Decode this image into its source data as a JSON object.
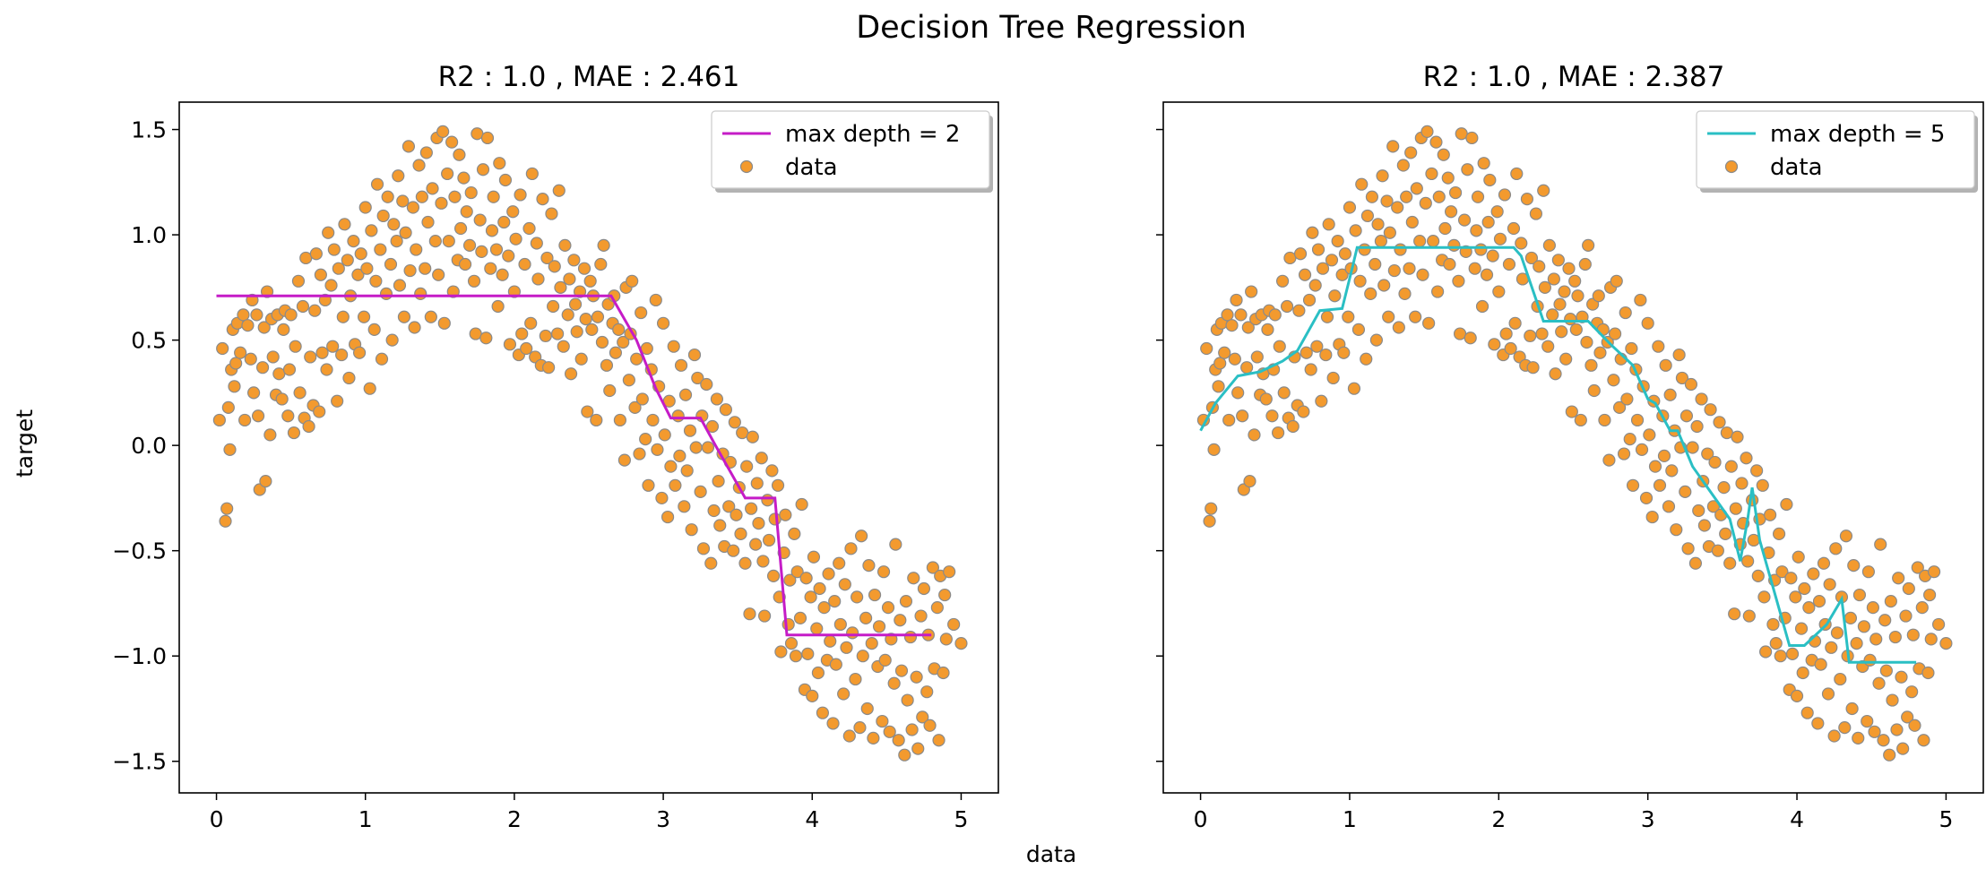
{
  "figure": {
    "suptitle": "Decision Tree Regression",
    "xlabel": "data",
    "ylabel": "target"
  },
  "chart_data": [
    {
      "type": "scatter",
      "title": "R2 : 1.0 , MAE : 2.461",
      "xlim": [
        -0.25,
        5.25
      ],
      "ylim": [
        -1.65,
        1.63
      ],
      "xticks": [
        "0",
        "1",
        "2",
        "3",
        "4",
        "5"
      ],
      "yticks": [
        "1.5",
        "1.0",
        "0.5",
        "0.0",
        "−0.5",
        "−1.0",
        "−1.5"
      ],
      "grid": false,
      "legend_position": "top-right",
      "series": [
        {
          "name": "max depth = 2",
          "kind": "line",
          "color": "#c51cc7",
          "x": [
            0.0,
            2.65,
            2.82,
            2.95,
            3.05,
            3.25,
            3.35,
            3.55,
            3.65,
            3.75,
            3.83,
            4.8
          ],
          "y": [
            0.71,
            0.71,
            0.5,
            0.27,
            0.13,
            0.13,
            0.0,
            -0.25,
            -0.25,
            -0.25,
            -0.9,
            -0.9
          ]
        },
        {
          "name": "data",
          "kind": "scatter",
          "color": "#f39a2e",
          "edge_color": "#8a8a8a"
        }
      ]
    },
    {
      "type": "scatter",
      "title": "R2 : 1.0 , MAE : 2.387",
      "xlim": [
        -0.25,
        5.25
      ],
      "ylim": [
        -1.65,
        1.63
      ],
      "xticks": [
        "0",
        "1",
        "2",
        "3",
        "4",
        "5"
      ],
      "yticks": [
        "1.5",
        "1.0",
        "0.5",
        "0.0",
        "−0.5",
        "−1.0",
        "−1.5"
      ],
      "grid": false,
      "legend_position": "top-right",
      "series": [
        {
          "name": "max depth = 5",
          "kind": "line",
          "color": "#2abfc4",
          "x": [
            0.0,
            0.1,
            0.25,
            0.4,
            0.55,
            0.65,
            0.8,
            0.95,
            1.02,
            1.05,
            2.1,
            2.15,
            2.3,
            2.6,
            2.75,
            2.9,
            3.0,
            3.05,
            3.15,
            3.2,
            3.3,
            3.45,
            3.55,
            3.62,
            3.67,
            3.7,
            3.75,
            3.85,
            3.95,
            4.05,
            4.2,
            4.3,
            4.35,
            4.5,
            4.8
          ],
          "y": [
            0.07,
            0.2,
            0.33,
            0.35,
            0.4,
            0.45,
            0.64,
            0.65,
            0.85,
            0.94,
            0.94,
            0.9,
            0.59,
            0.59,
            0.48,
            0.38,
            0.22,
            0.2,
            0.07,
            0.07,
            -0.1,
            -0.25,
            -0.35,
            -0.55,
            -0.35,
            -0.2,
            -0.45,
            -0.7,
            -0.95,
            -0.95,
            -0.85,
            -0.73,
            -1.03,
            -1.03,
            -1.03
          ]
        },
        {
          "name": "data",
          "kind": "scatter",
          "color": "#f39a2e",
          "edge_color": "#8a8a8a"
        }
      ]
    }
  ],
  "scatter_points": [
    [
      0.02,
      0.12
    ],
    [
      0.04,
      0.46
    ],
    [
      0.06,
      -0.36
    ],
    [
      0.07,
      -0.3
    ],
    [
      0.08,
      0.18
    ],
    [
      0.09,
      -0.02
    ],
    [
      0.1,
      0.36
    ],
    [
      0.11,
      0.55
    ],
    [
      0.12,
      0.28
    ],
    [
      0.13,
      0.39
    ],
    [
      0.14,
      0.58
    ],
    [
      0.16,
      0.44
    ],
    [
      0.18,
      0.62
    ],
    [
      0.19,
      0.12
    ],
    [
      0.21,
      0.57
    ],
    [
      0.23,
      0.41
    ],
    [
      0.24,
      0.69
    ],
    [
      0.25,
      0.25
    ],
    [
      0.27,
      0.62
    ],
    [
      0.28,
      0.14
    ],
    [
      0.29,
      -0.21
    ],
    [
      0.31,
      0.37
    ],
    [
      0.32,
      0.56
    ],
    [
      0.33,
      -0.17
    ],
    [
      0.34,
      0.73
    ],
    [
      0.36,
      0.05
    ],
    [
      0.37,
      0.6
    ],
    [
      0.38,
      0.42
    ],
    [
      0.4,
      0.24
    ],
    [
      0.41,
      0.62
    ],
    [
      0.42,
      0.34
    ],
    [
      0.44,
      0.22
    ],
    [
      0.45,
      0.55
    ],
    [
      0.46,
      0.64
    ],
    [
      0.48,
      0.14
    ],
    [
      0.49,
      0.36
    ],
    [
      0.5,
      0.62
    ],
    [
      0.52,
      0.06
    ],
    [
      0.53,
      0.47
    ],
    [
      0.55,
      0.78
    ],
    [
      0.56,
      0.25
    ],
    [
      0.58,
      0.66
    ],
    [
      0.59,
      0.13
    ],
    [
      0.6,
      0.89
    ],
    [
      0.62,
      0.09
    ],
    [
      0.63,
      0.42
    ],
    [
      0.65,
      0.19
    ],
    [
      0.66,
      0.64
    ],
    [
      0.67,
      0.91
    ],
    [
      0.69,
      0.16
    ],
    [
      0.7,
      0.81
    ],
    [
      0.71,
      0.44
    ],
    [
      0.73,
      0.69
    ],
    [
      0.74,
      0.36
    ],
    [
      0.75,
      1.01
    ],
    [
      0.77,
      0.76
    ],
    [
      0.78,
      0.47
    ],
    [
      0.79,
      0.93
    ],
    [
      0.81,
      0.21
    ],
    [
      0.82,
      0.84
    ],
    [
      0.84,
      0.43
    ],
    [
      0.85,
      0.61
    ],
    [
      0.86,
      1.05
    ],
    [
      0.88,
      0.88
    ],
    [
      0.89,
      0.32
    ],
    [
      0.9,
      0.71
    ],
    [
      0.92,
      0.97
    ],
    [
      0.93,
      0.48
    ],
    [
      0.95,
      0.81
    ],
    [
      0.96,
      0.44
    ],
    [
      0.97,
      0.91
    ],
    [
      0.99,
      0.61
    ],
    [
      1.0,
      1.13
    ],
    [
      1.01,
      0.84
    ],
    [
      1.03,
      0.27
    ],
    [
      1.04,
      1.02
    ],
    [
      1.06,
      0.55
    ],
    [
      1.07,
      0.78
    ],
    [
      1.08,
      1.24
    ],
    [
      1.1,
      0.93
    ],
    [
      1.11,
      0.41
    ],
    [
      1.12,
      1.09
    ],
    [
      1.14,
      0.72
    ],
    [
      1.15,
      1.18
    ],
    [
      1.17,
      0.86
    ],
    [
      1.18,
      0.5
    ],
    [
      1.19,
      1.05
    ],
    [
      1.21,
      0.97
    ],
    [
      1.22,
      1.28
    ],
    [
      1.23,
      0.76
    ],
    [
      1.25,
      1.16
    ],
    [
      1.26,
      0.61
    ],
    [
      1.27,
      1.01
    ],
    [
      1.29,
      1.42
    ],
    [
      1.3,
      0.83
    ],
    [
      1.32,
      1.13
    ],
    [
      1.33,
      0.56
    ],
    [
      1.34,
      0.93
    ],
    [
      1.36,
      1.33
    ],
    [
      1.37,
      0.72
    ],
    [
      1.38,
      1.18
    ],
    [
      1.4,
      0.84
    ],
    [
      1.41,
      1.39
    ],
    [
      1.42,
      1.06
    ],
    [
      1.44,
      0.61
    ],
    [
      1.45,
      1.22
    ],
    [
      1.47,
      0.97
    ],
    [
      1.48,
      1.46
    ],
    [
      1.49,
      0.81
    ],
    [
      1.51,
      1.15
    ],
    [
      1.52,
      1.49
    ],
    [
      1.53,
      0.58
    ],
    [
      1.55,
      1.29
    ],
    [
      1.56,
      0.97
    ],
    [
      1.58,
      1.44
    ],
    [
      1.59,
      0.73
    ],
    [
      1.6,
      1.18
    ],
    [
      1.62,
      0.88
    ],
    [
      1.63,
      1.38
    ],
    [
      1.64,
      1.03
    ],
    [
      1.66,
      1.27
    ],
    [
      1.67,
      0.86
    ],
    [
      1.68,
      1.11
    ],
    [
      1.7,
      0.95
    ],
    [
      1.71,
      1.2
    ],
    [
      1.73,
      0.78
    ],
    [
      1.74,
      0.53
    ],
    [
      1.75,
      1.48
    ],
    [
      1.77,
      1.07
    ],
    [
      1.78,
      0.92
    ],
    [
      1.79,
      1.31
    ],
    [
      1.81,
      0.51
    ],
    [
      1.82,
      1.46
    ],
    [
      1.84,
      0.84
    ],
    [
      1.85,
      1.02
    ],
    [
      1.86,
      1.18
    ],
    [
      1.88,
      0.93
    ],
    [
      1.89,
      0.66
    ],
    [
      1.9,
      1.34
    ],
    [
      1.92,
      0.81
    ],
    [
      1.93,
      1.06
    ],
    [
      1.94,
      1.26
    ],
    [
      1.96,
      0.9
    ],
    [
      1.97,
      0.48
    ],
    [
      1.99,
      1.11
    ],
    [
      2.0,
      0.73
    ],
    [
      2.01,
      0.98
    ],
    [
      2.03,
      0.43
    ],
    [
      2.04,
      1.19
    ],
    [
      2.05,
      0.53
    ],
    [
      2.07,
      0.86
    ],
    [
      2.08,
      0.46
    ],
    [
      2.1,
      1.03
    ],
    [
      2.11,
      0.58
    ],
    [
      2.12,
      1.29
    ],
    [
      2.14,
      0.42
    ],
    [
      2.15,
      0.96
    ],
    [
      2.16,
      0.79
    ],
    [
      2.18,
      0.38
    ],
    [
      2.19,
      1.17
    ],
    [
      2.21,
      0.52
    ],
    [
      2.22,
      0.89
    ],
    [
      2.23,
      0.37
    ],
    [
      2.25,
      1.1
    ],
    [
      2.26,
      0.66
    ],
    [
      2.27,
      0.85
    ],
    [
      2.29,
      0.53
    ],
    [
      2.3,
      1.21
    ],
    [
      2.31,
      0.75
    ],
    [
      2.33,
      0.47
    ],
    [
      2.34,
      0.95
    ],
    [
      2.36,
      0.62
    ],
    [
      2.37,
      0.79
    ],
    [
      2.38,
      0.34
    ],
    [
      2.4,
      0.88
    ],
    [
      2.41,
      0.67
    ],
    [
      2.42,
      0.54
    ],
    [
      2.44,
      0.73
    ],
    [
      2.45,
      0.41
    ],
    [
      2.47,
      0.84
    ],
    [
      2.48,
      0.6
    ],
    [
      2.49,
      0.16
    ],
    [
      2.51,
      0.78
    ],
    [
      2.52,
      0.55
    ],
    [
      2.53,
      0.71
    ],
    [
      2.55,
      0.12
    ],
    [
      2.56,
      0.61
    ],
    [
      2.58,
      0.86
    ],
    [
      2.59,
      0.49
    ],
    [
      2.6,
      0.95
    ],
    [
      2.62,
      0.38
    ],
    [
      2.63,
      0.67
    ],
    [
      2.64,
      0.26
    ],
    [
      2.66,
      0.58
    ],
    [
      2.67,
      0.71
    ],
    [
      2.68,
      0.44
    ],
    [
      2.7,
      0.55
    ],
    [
      2.71,
      0.12
    ],
    [
      2.73,
      0.49
    ],
    [
      2.74,
      -0.07
    ],
    [
      2.75,
      0.75
    ],
    [
      2.77,
      0.31
    ],
    [
      2.78,
      0.53
    ],
    [
      2.79,
      0.78
    ],
    [
      2.81,
      0.18
    ],
    [
      2.82,
      0.41
    ],
    [
      2.84,
      -0.04
    ],
    [
      2.85,
      0.63
    ],
    [
      2.86,
      0.22
    ],
    [
      2.88,
      0.03
    ],
    [
      2.89,
      0.46
    ],
    [
      2.9,
      -0.19
    ],
    [
      2.92,
      0.36
    ],
    [
      2.93,
      0.12
    ],
    [
      2.95,
      0.69
    ],
    [
      2.96,
      -0.02
    ],
    [
      2.97,
      0.28
    ],
    [
      2.99,
      -0.25
    ],
    [
      3.0,
      0.58
    ],
    [
      3.01,
      0.05
    ],
    [
      3.03,
      -0.34
    ],
    [
      3.04,
      0.21
    ],
    [
      3.05,
      -0.1
    ],
    [
      3.07,
      0.47
    ],
    [
      3.08,
      -0.19
    ],
    [
      3.1,
      0.14
    ],
    [
      3.11,
      -0.05
    ],
    [
      3.12,
      0.38
    ],
    [
      3.14,
      -0.29
    ],
    [
      3.15,
      0.24
    ],
    [
      3.16,
      -0.12
    ],
    [
      3.18,
      0.07
    ],
    [
      3.19,
      -0.4
    ],
    [
      3.21,
      0.43
    ],
    [
      3.22,
      -0.01
    ],
    [
      3.23,
      0.32
    ],
    [
      3.25,
      -0.22
    ],
    [
      3.26,
      0.14
    ],
    [
      3.27,
      -0.49
    ],
    [
      3.29,
      0.29
    ],
    [
      3.3,
      -0.01
    ],
    [
      3.32,
      -0.56
    ],
    [
      3.33,
      0.09
    ],
    [
      3.34,
      -0.31
    ],
    [
      3.36,
      0.22
    ],
    [
      3.37,
      -0.17
    ],
    [
      3.38,
      -0.38
    ],
    [
      3.4,
      -0.04
    ],
    [
      3.41,
      -0.48
    ],
    [
      3.42,
      0.17
    ],
    [
      3.44,
      -0.29
    ],
    [
      3.45,
      -0.08
    ],
    [
      3.47,
      -0.5
    ],
    [
      3.48,
      0.11
    ],
    [
      3.49,
      -0.33
    ],
    [
      3.51,
      -0.2
    ],
    [
      3.52,
      -0.42
    ],
    [
      3.53,
      0.06
    ],
    [
      3.55,
      -0.56
    ],
    [
      3.56,
      -0.1
    ],
    [
      3.58,
      -0.8
    ],
    [
      3.59,
      -0.3
    ],
    [
      3.6,
      0.04
    ],
    [
      3.62,
      -0.47
    ],
    [
      3.63,
      -0.18
    ],
    [
      3.64,
      -0.37
    ],
    [
      3.66,
      -0.06
    ],
    [
      3.67,
      -0.55
    ],
    [
      3.68,
      -0.81
    ],
    [
      3.7,
      -0.26
    ],
    [
      3.71,
      -0.45
    ],
    [
      3.73,
      -0.12
    ],
    [
      3.74,
      -0.62
    ],
    [
      3.75,
      -0.35
    ],
    [
      3.77,
      -0.19
    ],
    [
      3.78,
      -0.72
    ],
    [
      3.79,
      -0.98
    ],
    [
      3.81,
      -0.51
    ],
    [
      3.82,
      -0.33
    ],
    [
      3.84,
      -0.85
    ],
    [
      3.85,
      -0.64
    ],
    [
      3.86,
      -0.94
    ],
    [
      3.88,
      -0.42
    ],
    [
      3.89,
      -1.0
    ],
    [
      3.9,
      -0.6
    ],
    [
      3.92,
      -0.82
    ],
    [
      3.93,
      -0.28
    ],
    [
      3.95,
      -1.16
    ],
    [
      3.96,
      -0.63
    ],
    [
      3.97,
      -0.99
    ],
    [
      3.99,
      -0.72
    ],
    [
      4.0,
      -1.19
    ],
    [
      4.01,
      -0.53
    ],
    [
      4.03,
      -0.87
    ],
    [
      4.04,
      -1.08
    ],
    [
      4.05,
      -0.68
    ],
    [
      4.07,
      -1.27
    ],
    [
      4.08,
      -0.77
    ],
    [
      4.1,
      -1.02
    ],
    [
      4.11,
      -0.61
    ],
    [
      4.12,
      -0.93
    ],
    [
      4.14,
      -1.32
    ],
    [
      4.15,
      -0.74
    ],
    [
      4.16,
      -1.04
    ],
    [
      4.18,
      -0.56
    ],
    [
      4.19,
      -0.85
    ],
    [
      4.21,
      -1.18
    ],
    [
      4.22,
      -0.66
    ],
    [
      4.23,
      -0.96
    ],
    [
      4.25,
      -1.38
    ],
    [
      4.26,
      -0.49
    ],
    [
      4.27,
      -0.89
    ],
    [
      4.29,
      -1.11
    ],
    [
      4.3,
      -0.72
    ],
    [
      4.32,
      -1.34
    ],
    [
      4.33,
      -0.43
    ],
    [
      4.34,
      -1.0
    ],
    [
      4.36,
      -0.82
    ],
    [
      4.37,
      -1.25
    ],
    [
      4.38,
      -0.57
    ],
    [
      4.4,
      -0.94
    ],
    [
      4.41,
      -1.39
    ],
    [
      4.42,
      -0.71
    ],
    [
      4.44,
      -1.05
    ],
    [
      4.45,
      -0.86
    ],
    [
      4.47,
      -1.31
    ],
    [
      4.48,
      -0.6
    ],
    [
      4.49,
      -1.02
    ],
    [
      4.51,
      -0.77
    ],
    [
      4.52,
      -1.36
    ],
    [
      4.53,
      -0.92
    ],
    [
      4.55,
      -1.13
    ],
    [
      4.56,
      -0.47
    ],
    [
      4.58,
      -1.4
    ],
    [
      4.59,
      -0.83
    ],
    [
      4.6,
      -1.07
    ],
    [
      4.62,
      -1.47
    ],
    [
      4.63,
      -0.74
    ],
    [
      4.64,
      -1.21
    ],
    [
      4.66,
      -0.91
    ],
    [
      4.67,
      -1.35
    ],
    [
      4.68,
      -0.63
    ],
    [
      4.7,
      -1.1
    ],
    [
      4.71,
      -1.44
    ],
    [
      4.73,
      -0.81
    ],
    [
      4.74,
      -1.29
    ],
    [
      4.75,
      -0.68
    ],
    [
      4.77,
      -1.17
    ],
    [
      4.78,
      -0.9
    ],
    [
      4.79,
      -1.33
    ],
    [
      4.81,
      -0.58
    ],
    [
      4.82,
      -1.06
    ],
    [
      4.84,
      -0.77
    ],
    [
      4.85,
      -1.4
    ],
    [
      4.86,
      -0.62
    ],
    [
      4.88,
      -1.08
    ],
    [
      4.89,
      -0.71
    ],
    [
      4.9,
      -0.92
    ],
    [
      4.92,
      -0.6
    ],
    [
      4.95,
      -0.85
    ],
    [
      5.0,
      -0.94
    ]
  ]
}
